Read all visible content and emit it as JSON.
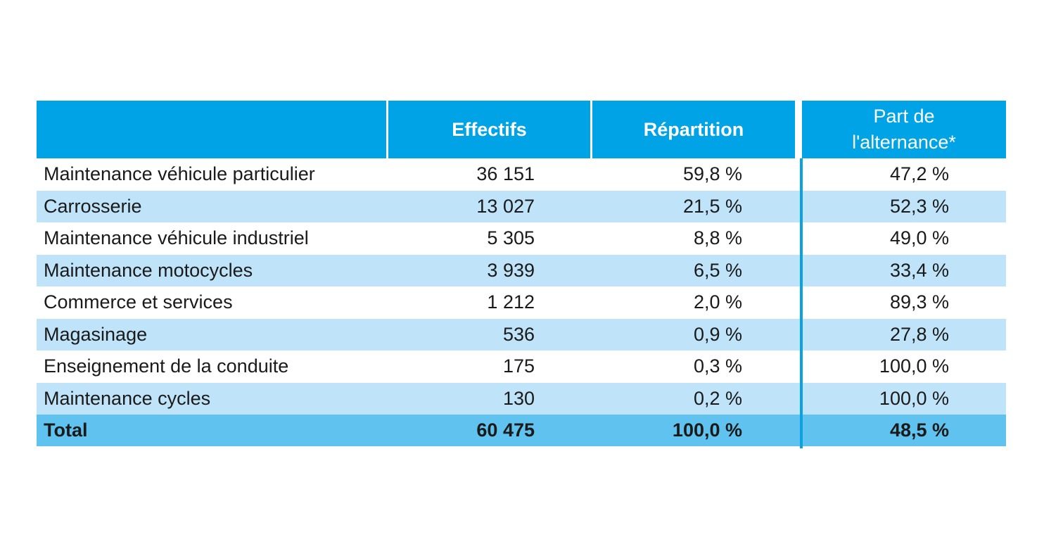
{
  "table": {
    "headers": {
      "col0": "",
      "col1": "Effectifs",
      "col2": "Répartition",
      "col3_line1": "Part de",
      "col3_line2": "l'alternance*"
    },
    "rows": [
      {
        "label": "Maintenance véhicule particulier",
        "effectifs": "36 151",
        "repartition": "59,8 %",
        "alternance": "47,2 %"
      },
      {
        "label": "Carrosserie",
        "effectifs": "13 027",
        "repartition": "21,5 %",
        "alternance": "52,3 %"
      },
      {
        "label": "Maintenance véhicule industriel",
        "effectifs": "5 305",
        "repartition": "8,8 %",
        "alternance": "49,0 %"
      },
      {
        "label": "Maintenance motocycles",
        "effectifs": "3 939",
        "repartition": "6,5 %",
        "alternance": "33,4 %"
      },
      {
        "label": "Commerce et services",
        "effectifs": "1 212",
        "repartition": "2,0 %",
        "alternance": "89,3 %"
      },
      {
        "label": "Magasinage",
        "effectifs": "536",
        "repartition": "0,9 %",
        "alternance": "27,8 %"
      },
      {
        "label": "Enseignement de la conduite",
        "effectifs": "175",
        "repartition": "0,3 %",
        "alternance": "100,0 %"
      },
      {
        "label": "Maintenance cycles",
        "effectifs": "130",
        "repartition": "0,2 %",
        "alternance": "100,0 %"
      }
    ],
    "total": {
      "label": "Total",
      "effectifs": "60 475",
      "repartition": "100,0 %",
      "alternance": "48,5 %"
    }
  },
  "colors": {
    "header_bg": "#00a3e6",
    "row_light": "#bfe3f8",
    "total_bg": "#5fc2ef",
    "rule": "#0aa2e2"
  }
}
